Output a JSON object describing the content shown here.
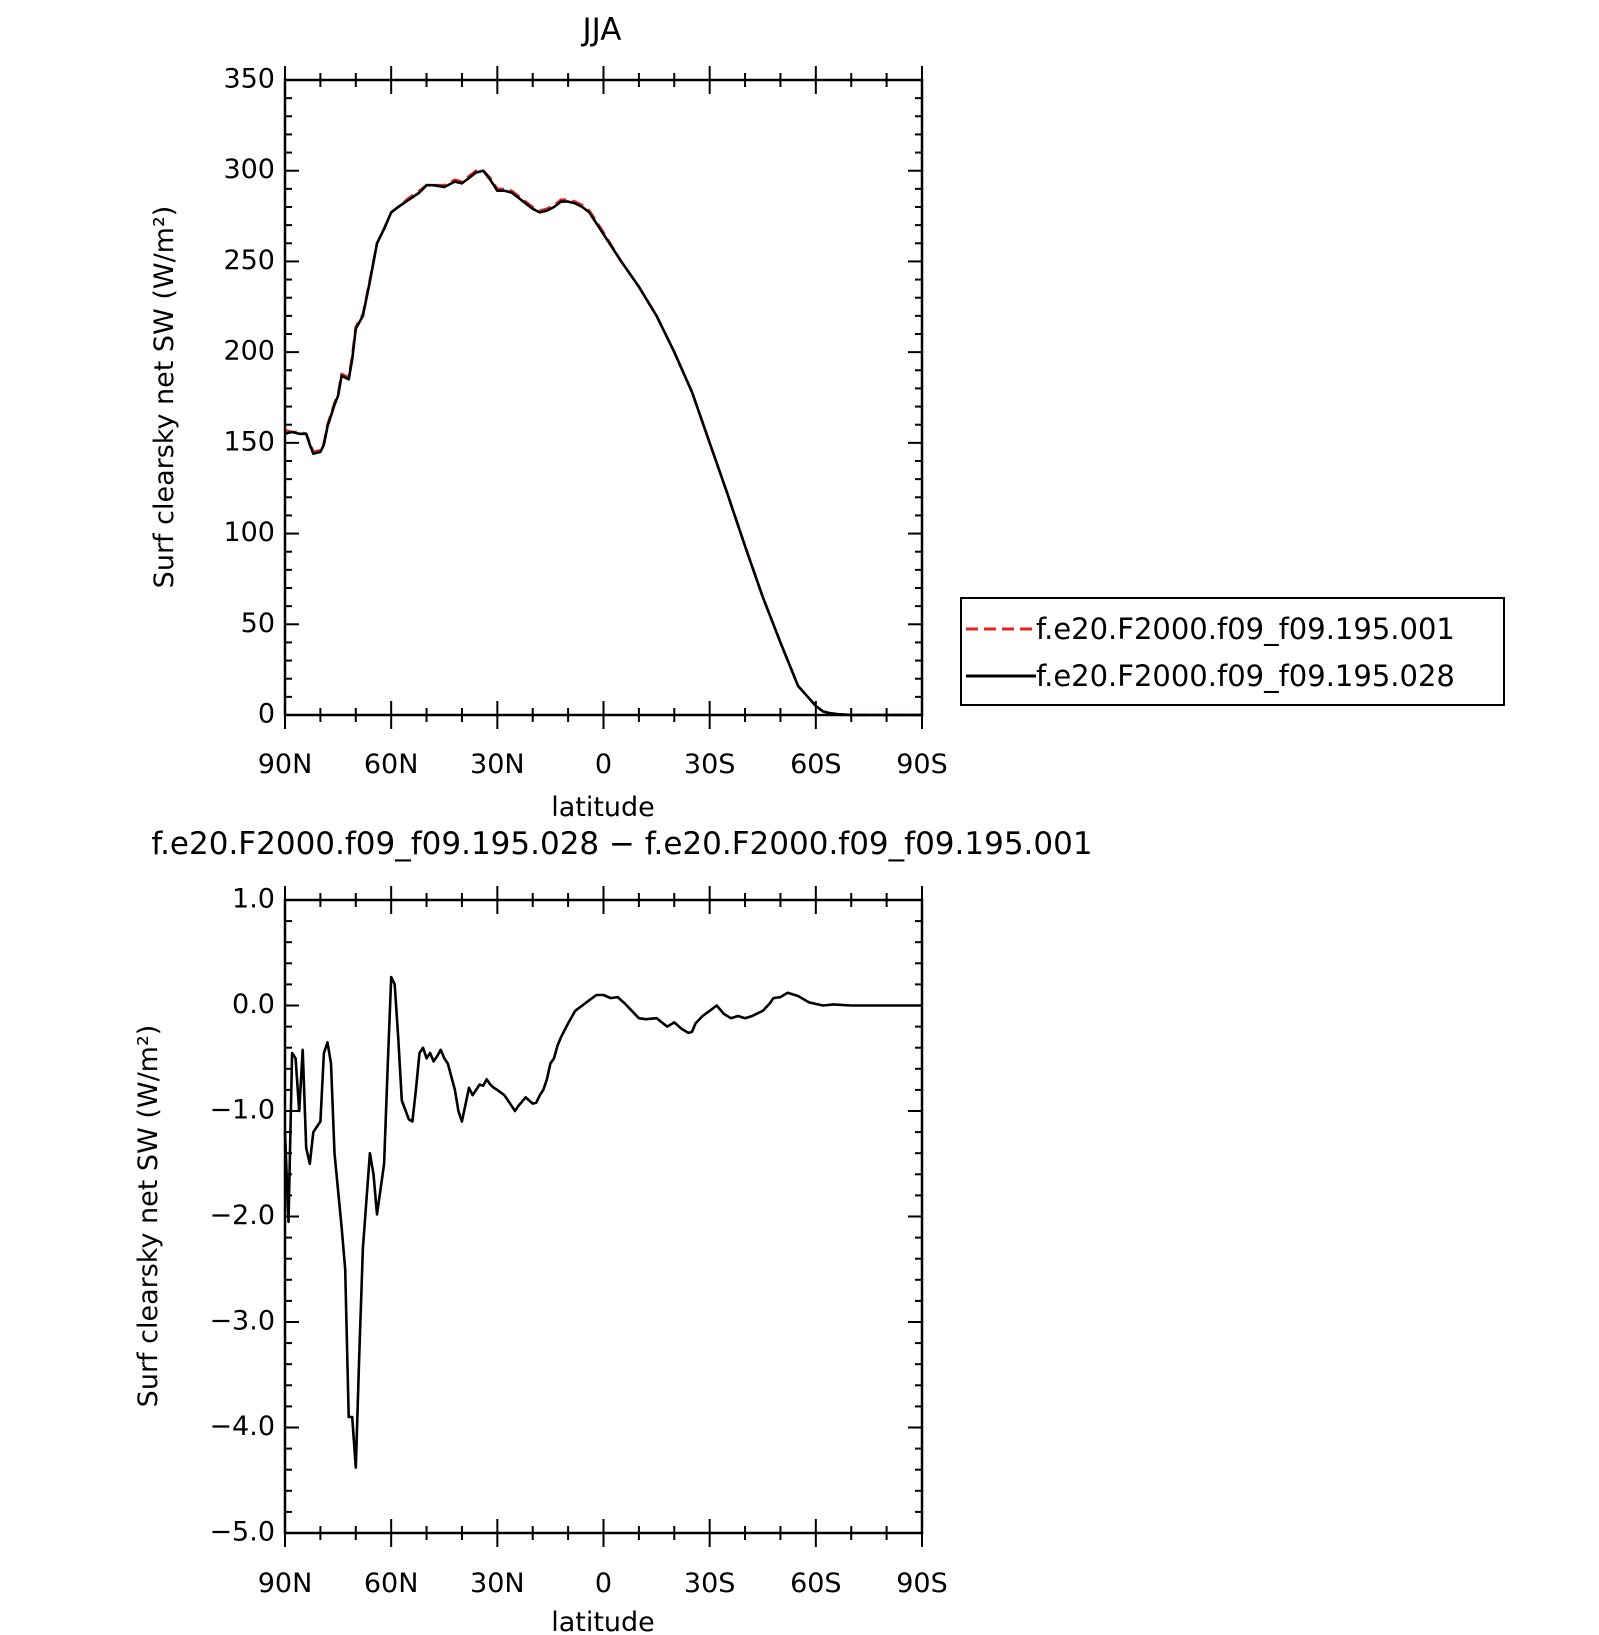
{
  "chart_data": [
    {
      "type": "line",
      "title": "JJA",
      "xlabel": "latitude",
      "ylabel": "Surf clearsky net SW (W/m²)",
      "xlim": [
        90,
        -90
      ],
      "ylim": [
        0,
        350
      ],
      "xticks": [
        90,
        60,
        30,
        0,
        -30,
        -60,
        -90
      ],
      "xtick_labels": [
        "90N",
        "60N",
        "30N",
        "0",
        "30S",
        "60S",
        "90S"
      ],
      "yticks": [
        0,
        50,
        100,
        150,
        200,
        250,
        300,
        350
      ],
      "ytick_labels": [
        "0",
        "50",
        "100",
        "150",
        "200",
        "250",
        "300",
        "350"
      ],
      "legend": "right",
      "x": [
        90,
        88,
        86,
        84,
        83,
        82,
        80,
        79,
        78,
        76,
        75,
        74,
        72,
        71,
        70,
        68,
        66,
        64,
        62,
        60,
        58,
        55,
        52,
        50,
        48,
        45,
        42,
        40,
        38,
        36,
        34,
        32,
        30,
        28,
        26,
        24,
        22,
        20,
        18,
        16,
        14,
        12,
        10,
        8,
        6,
        4,
        2,
        0,
        -5,
        -10,
        -15,
        -20,
        -25,
        -30,
        -35,
        -40,
        -45,
        -50,
        -55,
        -60,
        -62,
        -64,
        -66,
        -68,
        -70,
        -75,
        -80,
        -85,
        -90
      ],
      "series": [
        {
          "name": "f.e20.F2000.f09_f09.195.001",
          "color": "#e8201f",
          "dash": "dashed",
          "values": [
            157,
            156,
            156,
            155,
            150,
            145,
            146,
            150,
            160,
            172,
            177,
            188,
            186,
            198,
            214,
            221,
            240,
            260,
            268,
            277,
            280,
            285,
            289,
            292,
            292,
            292,
            295,
            294,
            297,
            300,
            300,
            296,
            290,
            290,
            289,
            286,
            283,
            280,
            278,
            279,
            281,
            284,
            284,
            283,
            281,
            278,
            272,
            266,
            250,
            236,
            220,
            200,
            178,
            150,
            122,
            93,
            65,
            40,
            16,
            5,
            2,
            1,
            0.5,
            0.2,
            0,
            0,
            0,
            0,
            0
          ]
        },
        {
          "name": "f.e20.F2000.f09_f09.195.028",
          "color": "#000000",
          "dash": "solid",
          "values": [
            155,
            156,
            155,
            155,
            149,
            144,
            145,
            149,
            159,
            171,
            176,
            187,
            185,
            196,
            213,
            220,
            239,
            260,
            268,
            277,
            280,
            284,
            288,
            292,
            292,
            291,
            294,
            293,
            296,
            299,
            300,
            295,
            289,
            289,
            288,
            285,
            282,
            279,
            277,
            278,
            280,
            283,
            283,
            282,
            280,
            277,
            271,
            265,
            250,
            236,
            220,
            200,
            178,
            150,
            122,
            93,
            65,
            40,
            16,
            5,
            2,
            1,
            0.5,
            0.2,
            0,
            0,
            0,
            0,
            0
          ]
        }
      ]
    },
    {
      "type": "line",
      "title": "f.e20.F2000.f09_f09.195.028 − f.e20.F2000.f09_f09.195.001",
      "xlabel": "latitude",
      "ylabel": "Surf clearsky net SW (W/m²)",
      "xlim": [
        90,
        -90
      ],
      "ylim": [
        -5,
        1
      ],
      "xticks": [
        90,
        60,
        30,
        0,
        -30,
        -60,
        -90
      ],
      "xtick_labels": [
        "90N",
        "60N",
        "30N",
        "0",
        "30S",
        "60S",
        "90S"
      ],
      "yticks": [
        1,
        0,
        -1,
        -2,
        -3,
        -4,
        -5
      ],
      "ytick_labels": [
        "1.0",
        "0.0",
        "−1.0",
        "−2.0",
        "−3.0",
        "−4.0",
        "−5.0"
      ],
      "x": [
        90,
        89,
        88,
        87,
        86,
        85,
        84,
        83,
        82,
        80,
        79,
        78,
        77,
        76,
        74,
        73,
        72,
        71,
        70,
        69,
        68,
        66,
        65,
        64,
        62,
        61,
        60,
        59,
        58,
        57,
        55,
        54,
        53,
        52,
        51,
        50,
        49,
        48,
        47,
        46,
        45,
        44,
        42,
        41,
        40,
        38,
        37,
        36,
        35,
        34,
        33,
        32,
        31,
        30,
        28,
        26,
        25,
        24,
        22,
        20,
        19,
        18,
        17,
        16,
        15,
        14,
        13,
        12,
        10,
        8,
        6,
        4,
        2,
        0,
        -2,
        -4,
        -6,
        -8,
        -10,
        -12,
        -15,
        -18,
        -20,
        -22,
        -24,
        -25,
        -26,
        -28,
        -30,
        -32,
        -34,
        -36,
        -38,
        -40,
        -42,
        -45,
        -47,
        -48,
        -50,
        -52,
        -55,
        -58,
        -62,
        -65,
        -70,
        -80,
        -90
      ],
      "series": [
        {
          "name": "",
          "color": "#000000",
          "values": [
            -1.2,
            -2.05,
            -0.45,
            -0.5,
            -1.0,
            -0.42,
            -1.35,
            -1.5,
            -1.2,
            -1.1,
            -0.45,
            -0.35,
            -0.55,
            -1.4,
            -2.1,
            -2.5,
            -3.9,
            -3.9,
            -4.38,
            -3.3,
            -2.3,
            -1.4,
            -1.6,
            -1.98,
            -1.5,
            -0.6,
            0.27,
            0.2,
            -0.3,
            -0.9,
            -1.08,
            -1.1,
            -0.8,
            -0.45,
            -0.4,
            -0.5,
            -0.45,
            -0.53,
            -0.48,
            -0.42,
            -0.5,
            -0.55,
            -0.8,
            -1.0,
            -1.1,
            -0.78,
            -0.85,
            -0.8,
            -0.75,
            -0.76,
            -0.7,
            -0.75,
            -0.78,
            -0.8,
            -0.85,
            -0.95,
            -1.0,
            -0.95,
            -0.87,
            -0.93,
            -0.92,
            -0.85,
            -0.8,
            -0.7,
            -0.55,
            -0.5,
            -0.38,
            -0.3,
            -0.17,
            -0.05,
            0.0,
            0.05,
            0.1,
            0.1,
            0.07,
            0.08,
            0.02,
            -0.05,
            -0.12,
            -0.13,
            -0.12,
            -0.2,
            -0.16,
            -0.22,
            -0.26,
            -0.25,
            -0.17,
            -0.1,
            -0.05,
            0.0,
            -0.08,
            -0.12,
            -0.1,
            -0.12,
            -0.1,
            -0.05,
            0.02,
            0.07,
            0.08,
            0.12,
            0.09,
            0.03,
            0.0,
            0.01,
            0.0,
            0.0,
            0.0
          ]
        }
      ]
    }
  ]
}
